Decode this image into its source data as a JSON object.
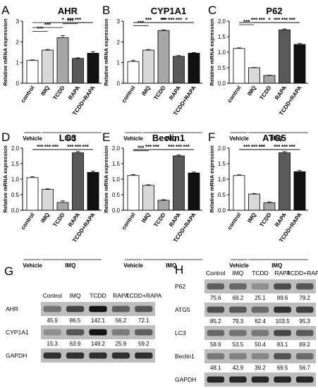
{
  "conditions": [
    "control",
    "IMQ",
    "TCDD",
    "RAPA",
    "TCDD+RAPA"
  ],
  "group_labels": {
    "vehicle": "Vehicle",
    "imq": "IMQ"
  },
  "chart_data": [
    {
      "letter": "A",
      "type": "bar",
      "title": "AHR",
      "ylabel": "Relative mRNA expression",
      "ylim": [
        0,
        3
      ],
      "yticks": [
        0,
        1,
        2,
        3
      ],
      "categories": [
        "control",
        "IMQ",
        "TCDD",
        "RAPA",
        "TCDD+RAPA"
      ],
      "values": [
        1.1,
        1.6,
        2.2,
        1.2,
        1.45
      ],
      "errors": [
        0.03,
        0.03,
        0.1,
        0.03,
        0.08
      ],
      "significance": [
        {
          "from": 0,
          "to": 1,
          "label": "***"
        },
        {
          "from": 0,
          "to": 2,
          "label": "***"
        },
        {
          "from": 2,
          "to": 3,
          "label": "***"
        },
        {
          "from": 2,
          "to": 4,
          "label": "***"
        },
        {
          "from": 1,
          "to": 4,
          "label": "***"
        },
        {
          "from": 0,
          "to": 4,
          "label": "*"
        }
      ]
    },
    {
      "letter": "B",
      "type": "bar",
      "title": "CYP1A1",
      "ylabel": "Relative mRNA expression",
      "ylim": [
        0,
        3
      ],
      "yticks": [
        0,
        1,
        2,
        3
      ],
      "categories": [
        "control",
        "IMQ",
        "TCDD",
        "RAPA",
        "TCDD+RAPA"
      ],
      "values": [
        1.05,
        1.6,
        2.55,
        1.3,
        1.45
      ],
      "errors": [
        0.05,
        0.03,
        0.03,
        0.04,
        0.03
      ],
      "significance": [
        {
          "from": 0,
          "to": 1,
          "label": "***"
        },
        {
          "from": 3,
          "to": 4,
          "label": "*"
        },
        {
          "from": 2,
          "to": 4,
          "label": "***"
        },
        {
          "from": 2,
          "to": 3,
          "label": "***"
        },
        {
          "from": 0,
          "to": 2,
          "label": "***"
        },
        {
          "from": 1,
          "to": 3,
          "label": "**"
        },
        {
          "from": 0,
          "to": 4,
          "label": "***"
        }
      ]
    },
    {
      "letter": "C",
      "type": "bar",
      "title": "P62",
      "ylabel": "Relative mRNA expression",
      "ylim": [
        0,
        2
      ],
      "yticks": [
        0.0,
        0.5,
        1.0,
        1.5,
        2.0
      ],
      "categories": [
        "control",
        "IMQ",
        "TCDD",
        "RAPA",
        "TCDD+RAPA"
      ],
      "values": [
        1.12,
        0.5,
        0.25,
        1.72,
        1.25
      ],
      "errors": [
        0.02,
        0.01,
        0.01,
        0.03,
        0.03
      ],
      "significance": [
        {
          "from": 0,
          "to": 1,
          "label": "***"
        },
        {
          "from": 1,
          "to": 2,
          "label": "***"
        },
        {
          "from": 2,
          "to": 3,
          "label": "***"
        },
        {
          "from": 3,
          "to": 4,
          "label": "***"
        },
        {
          "from": 2,
          "to": 4,
          "label": "***"
        },
        {
          "from": 0,
          "to": 2,
          "label": "***"
        },
        {
          "from": 0,
          "to": 4,
          "label": "*"
        }
      ]
    },
    {
      "letter": "D",
      "type": "bar",
      "title": "LC3",
      "ylabel": "Relative mRNA expression",
      "ylim": [
        0,
        2
      ],
      "yticks": [
        0.0,
        0.5,
        1.0,
        1.5,
        2.0
      ],
      "categories": [
        "control",
        "IMQ",
        "TCDD",
        "RAPA",
        "TCDD+RAPA"
      ],
      "values": [
        1.05,
        0.67,
        0.25,
        1.85,
        1.22
      ],
      "errors": [
        0.03,
        0.02,
        0.05,
        0.04,
        0.04
      ],
      "significance": [
        {
          "from": 0,
          "to": 1,
          "label": "***"
        },
        {
          "from": 0,
          "to": 2,
          "label": "***"
        },
        {
          "from": 3,
          "to": 4,
          "label": "***"
        },
        {
          "from": 2,
          "to": 3,
          "label": "***"
        },
        {
          "from": 0,
          "to": 3,
          "label": "***"
        },
        {
          "from": 2,
          "to": 4,
          "label": "***"
        }
      ]
    },
    {
      "letter": "E",
      "type": "bar",
      "title": "Beclin1",
      "ylabel": "Relative mRNA expression",
      "ylim": [
        0,
        2
      ],
      "yticks": [
        0.0,
        0.5,
        1.0,
        1.5,
        2.0
      ],
      "categories": [
        "control",
        "IMQ",
        "TCDD",
        "RAPA",
        "TCDD+RAPA"
      ],
      "values": [
        1.12,
        0.8,
        0.32,
        1.75,
        1.2
      ],
      "errors": [
        0.03,
        0.02,
        0.02,
        0.03,
        0.03
      ],
      "significance": [
        {
          "from": 0,
          "to": 1,
          "label": "***"
        },
        {
          "from": 0,
          "to": 2,
          "label": "***"
        },
        {
          "from": 3,
          "to": 4,
          "label": "***"
        },
        {
          "from": 2,
          "to": 3,
          "label": "***"
        },
        {
          "from": 0,
          "to": 3,
          "label": "***"
        },
        {
          "from": 2,
          "to": 4,
          "label": "***"
        }
      ]
    },
    {
      "letter": "F",
      "type": "bar",
      "title": "ATG5",
      "ylabel": "Relative mRNA expression",
      "ylim": [
        0,
        2
      ],
      "yticks": [
        0.0,
        0.5,
        1.0,
        1.5,
        2.0
      ],
      "categories": [
        "control",
        "IMQ",
        "TCDD",
        "RAPA",
        "TCDD+RAPA"
      ],
      "values": [
        1.12,
        0.52,
        0.24,
        1.85,
        1.24
      ],
      "errors": [
        0.02,
        0.02,
        0.03,
        0.04,
        0.04
      ],
      "significance": [
        {
          "from": 0,
          "to": 1,
          "label": "***"
        },
        {
          "from": 1,
          "to": 2,
          "label": "***"
        },
        {
          "from": 3,
          "to": 4,
          "label": "***"
        },
        {
          "from": 2,
          "to": 3,
          "label": "***"
        },
        {
          "from": 2,
          "to": 4,
          "label": "***"
        },
        {
          "from": 0,
          "to": 2,
          "label": "***"
        },
        {
          "from": 0,
          "to": 3,
          "label": "***"
        }
      ]
    }
  ],
  "blots": [
    {
      "letter": "G",
      "columns": [
        "Control",
        "IMQ",
        "TCDD",
        "RAPA",
        "TCDD+RAPA"
      ],
      "rows": [
        {
          "protein": "AHR",
          "values": [
            "45.9",
            "86.5",
            "142.1",
            "56.2",
            "72.1"
          ],
          "intensity": [
            0.45,
            0.7,
            0.95,
            0.55,
            0.6
          ]
        },
        {
          "protein": "CYP1A1",
          "values": [
            "15.3",
            "63.9",
            "149.2",
            "25.9",
            "59.2"
          ],
          "intensity": [
            0.3,
            0.6,
            0.95,
            0.4,
            0.55
          ]
        },
        {
          "protein": "GAPDH",
          "values": [],
          "intensity": [
            0.8,
            0.8,
            0.8,
            0.8,
            0.8
          ]
        }
      ]
    },
    {
      "letter": "H",
      "columns": [
        "Control",
        "IMQ",
        "TCDD",
        "RAPA",
        "TCDD+RAPA"
      ],
      "rows": [
        {
          "protein": "P62",
          "values": [
            "75.6",
            "69.2",
            "25.1",
            "89.6",
            "79.2"
          ],
          "intensity": [
            0.55,
            0.5,
            0.3,
            0.65,
            0.6
          ]
        },
        {
          "protein": "ATG5",
          "values": [
            "85.2",
            "79.3",
            "62.4",
            "103.5",
            "95.3"
          ],
          "intensity": [
            0.65,
            0.6,
            0.5,
            0.8,
            0.72
          ]
        },
        {
          "protein": "LC3",
          "values": [
            "58.6",
            "53.5",
            "50.4",
            "83.1",
            "69.2"
          ],
          "intensity": [
            0.5,
            0.45,
            0.42,
            0.68,
            0.58
          ]
        },
        {
          "protein": "Beclin1",
          "values": [
            "48.1",
            "42.9",
            "39.2",
            "69.5",
            "56.7"
          ],
          "intensity": [
            0.42,
            0.38,
            0.35,
            0.62,
            0.5
          ]
        },
        {
          "protein": "GAPDH",
          "values": [],
          "intensity": [
            0.85,
            0.85,
            0.85,
            0.85,
            0.85
          ]
        }
      ]
    }
  ],
  "colors": {
    "control": "#ffffff",
    "IMQ": "#d9d9d9",
    "TCDD": "#a6a6a6",
    "RAPA": "#595959",
    "TCDD+RAPA": "#111111"
  }
}
